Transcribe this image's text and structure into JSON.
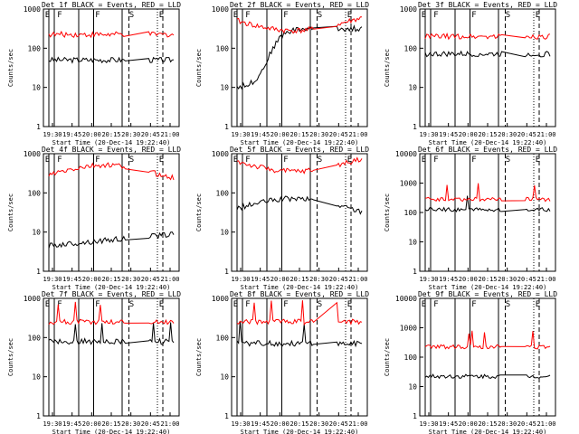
{
  "chart_data": [
    {
      "type": "line",
      "title": "Det 1f BLACK = Events, RED = LLD",
      "xlabel": "Start Time (20-Dec-14 19:22:40)",
      "ylabel": "Counts/sec",
      "yticks": [
        "1",
        "10",
        "100",
        "1000"
      ],
      "xticks": [
        "19:30",
        "19:45",
        "20:00",
        "20:15",
        "20:30",
        "20:45",
        "21:00"
      ],
      "markers": [
        "E",
        "F",
        "F",
        "S",
        "E"
      ],
      "series": [
        {
          "name": "Events",
          "color": "#000000",
          "profile": "flat",
          "level": 1.7
        },
        {
          "name": "LLD",
          "color": "#ff0000",
          "profile": "flat",
          "level": 2.35
        }
      ]
    },
    {
      "type": "line",
      "title": "Det 2f BLACK = Events, RED = LLD",
      "xlabel": "Start Time (20-Dec-14 19:22:40)",
      "ylabel": "Counts/sec",
      "yticks": [
        "1",
        "10",
        "100",
        "1000"
      ],
      "xticks": [
        "19:30",
        "19:45",
        "20:00",
        "20:15",
        "20:30",
        "20:45",
        "21:00"
      ],
      "markers": [
        "E",
        "F",
        "F",
        "S",
        "E"
      ],
      "series": [
        {
          "name": "Events",
          "color": "#000000",
          "profile": "rise",
          "level": 2.3
        },
        {
          "name": "LLD",
          "color": "#ff0000",
          "profile": "dip",
          "level": 2.7
        }
      ]
    },
    {
      "type": "line",
      "title": "Det 3f BLACK = Events, RED = LLD",
      "xlabel": "Start Time (20-Dec-14 19:22:40)",
      "ylabel": "Counts/sec",
      "yticks": [
        "1",
        "10",
        "100",
        "1000"
      ],
      "xticks": [
        "19:30",
        "19:45",
        "20:00",
        "20:15",
        "20:30",
        "20:45",
        "21:00"
      ],
      "markers": [
        "E",
        "F",
        "F",
        "S",
        "E"
      ],
      "series": [
        {
          "name": "Events",
          "color": "#000000",
          "profile": "flat",
          "level": 1.85
        },
        {
          "name": "LLD",
          "color": "#ff0000",
          "profile": "flat",
          "level": 2.3
        }
      ]
    },
    {
      "type": "line",
      "title": "Det 4f BLACK = Events, RED = LLD",
      "xlabel": "Start Time (20-Dec-14 19:22:40)",
      "ylabel": "Counts/sec",
      "yticks": [
        "1",
        "10",
        "100",
        "1000"
      ],
      "xticks": [
        "19:30",
        "19:45",
        "20:00",
        "20:15",
        "20:30",
        "20:45",
        "21:00"
      ],
      "markers": [
        "E",
        "F",
        "F",
        "S",
        "E"
      ],
      "series": [
        {
          "name": "Events",
          "color": "#000000",
          "profile": "low",
          "level": 0.65
        },
        {
          "name": "LLD",
          "color": "#ff0000",
          "profile": "hump",
          "level": 2.45
        }
      ]
    },
    {
      "type": "line",
      "title": "Det 5f BLACK = Events, RED = LLD",
      "xlabel": "Start Time (20-Dec-14 19:22:40)",
      "ylabel": "Counts/sec",
      "yticks": [
        "1",
        "10",
        "100",
        "1000"
      ],
      "xticks": [
        "19:30",
        "19:45",
        "20:00",
        "20:15",
        "20:30",
        "20:45",
        "21:00"
      ],
      "markers": [
        "E",
        "F",
        "F",
        "S",
        "E"
      ],
      "series": [
        {
          "name": "Events",
          "color": "#000000",
          "profile": "hump",
          "level": 1.6
        },
        {
          "name": "LLD",
          "color": "#ff0000",
          "profile": "dip",
          "level": 2.8
        }
      ]
    },
    {
      "type": "line",
      "title": "Det 6f BLACK = Events, RED = LLD",
      "xlabel": "Start Time (20-Dec-14 19:22:40)",
      "ylabel": "Counts/sec",
      "yticks": [
        "1",
        "10",
        "100",
        "1000",
        "10000"
      ],
      "xticks": [
        "19:30",
        "19:45",
        "20:00",
        "20:15",
        "20:30",
        "20:45",
        "21:00"
      ],
      "markers": [
        "E",
        "F",
        "F",
        "S",
        "E"
      ],
      "series": [
        {
          "name": "Events",
          "color": "#000000",
          "profile": "spiky",
          "level": 2.1
        },
        {
          "name": "LLD",
          "color": "#ff0000",
          "profile": "spiky",
          "level": 2.45
        }
      ]
    },
    {
      "type": "line",
      "title": "Det 7f BLACK = Events, RED = LLD",
      "xlabel": "Start Time (20-Dec-14 19:22:40)",
      "ylabel": "Counts/sec",
      "yticks": [
        "1",
        "10",
        "100",
        "1000"
      ],
      "xticks": [
        "19:30",
        "19:45",
        "20:00",
        "20:15",
        "20:30",
        "20:45",
        "21:00"
      ],
      "markers": [
        "E",
        "F",
        "F",
        "S",
        "E"
      ],
      "series": [
        {
          "name": "Events",
          "color": "#000000",
          "profile": "spiky",
          "level": 1.9
        },
        {
          "name": "LLD",
          "color": "#ff0000",
          "profile": "spiky",
          "level": 2.4
        }
      ]
    },
    {
      "type": "line",
      "title": "Det 8f BLACK = Events, RED = LLD",
      "xlabel": "Start Time (20-Dec-14 19:22:40)",
      "ylabel": "Counts/sec",
      "yticks": [
        "1",
        "10",
        "100",
        "1000"
      ],
      "xticks": [
        "19:30",
        "19:45",
        "20:00",
        "20:15",
        "20:30",
        "20:45",
        "21:00"
      ],
      "markers": [
        "E",
        "F",
        "F",
        "S",
        "E"
      ],
      "series": [
        {
          "name": "Events",
          "color": "#000000",
          "profile": "spiky",
          "level": 1.85
        },
        {
          "name": "LLD",
          "color": "#ff0000",
          "profile": "spiky",
          "level": 2.4
        }
      ]
    },
    {
      "type": "line",
      "title": "Det 9f BLACK = Events, RED = LLD",
      "xlabel": "Start Time (20-Dec-14 19:22:40)",
      "ylabel": "Counts/sec",
      "yticks": [
        "1",
        "10",
        "100",
        "1000",
        "10000"
      ],
      "xticks": [
        "19:30",
        "19:45",
        "20:00",
        "20:15",
        "20:30",
        "20:45",
        "21:00"
      ],
      "markers": [
        "E",
        "F",
        "F",
        "S",
        "E"
      ],
      "series": [
        {
          "name": "Events",
          "color": "#000000",
          "profile": "flat",
          "level": 1.35
        },
        {
          "name": "LLD",
          "color": "#ff0000",
          "profile": "spiky",
          "level": 2.35
        }
      ]
    }
  ]
}
